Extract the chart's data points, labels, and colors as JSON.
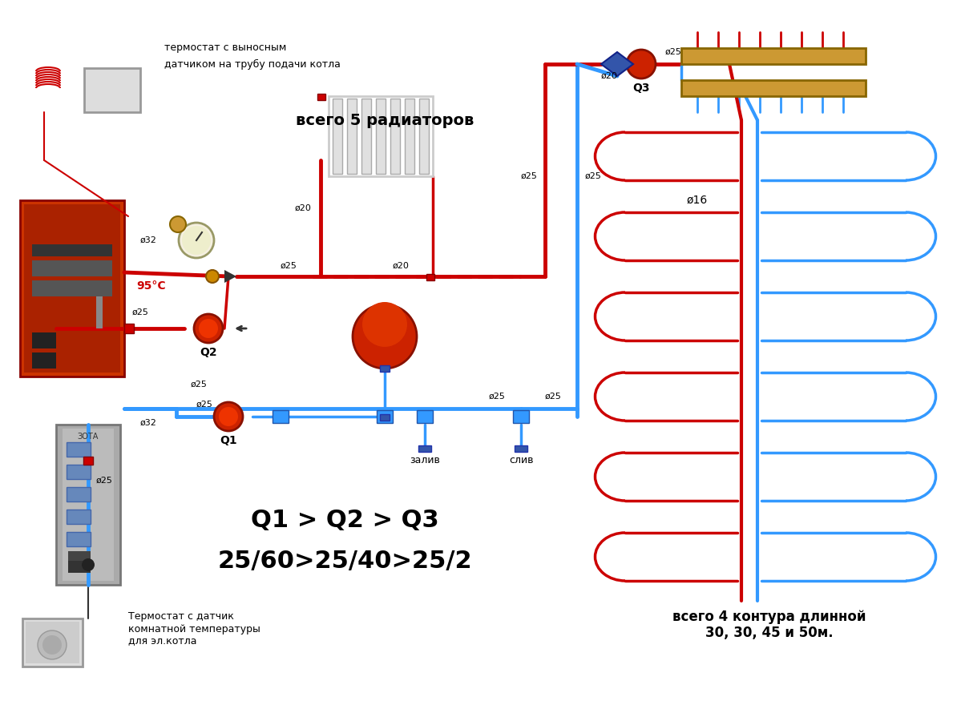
{
  "bg_color": "#ffffff",
  "red_pipe": "#cc0000",
  "blue_pipe": "#3399ff",
  "dark_red": "#cc0000",
  "text_color": "#000000",
  "title_text1": "термостат с выносным",
  "title_text2": "датчиком на трубу подачи котла",
  "label_radiators": "всего 5 радиаторов",
  "label_contours": "всего 4 контура длинной\n30, 30, 45 и 50м.",
  "label_q1q2q3": "Q1 > Q2 > Q3",
  "label_flows": "25/60>25/40>25/2",
  "label_temp": "95°C",
  "label_d32a": "ø32",
  "label_d32b": "ø32",
  "label_d25a": "ø25",
  "label_d25b": "ø25",
  "label_d25c": "ø25",
  "label_d25d": "ø25",
  "label_d25e": "ø25",
  "label_d25f": "ø25",
  "label_d25g": "ø25",
  "label_d25h": "ø25",
  "label_d25i": "ø25",
  "label_d25j": "ø25",
  "label_d20a": "ø20",
  "label_d20b": "ø20",
  "label_d20c": "ø20",
  "label_d16": "ø16",
  "label_Q1": "Q1",
  "label_Q2": "Q2",
  "label_Q3": "Q3",
  "label_zaliv": "залив",
  "label_sliv": "слив",
  "label_thermostat_bottom": "Термостат с датчик\nкомнатной температуры\nдля эл.котла",
  "pipe_lw": 3.5,
  "pipe_lw_thin": 2.5
}
